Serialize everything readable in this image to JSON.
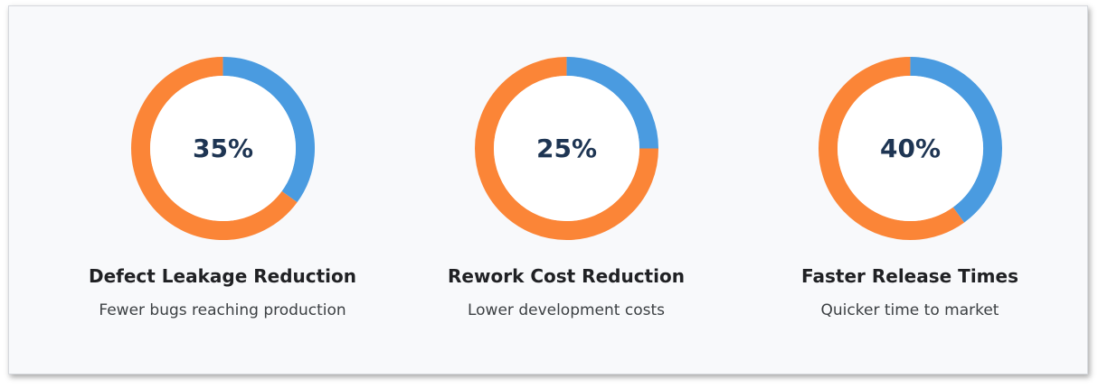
{
  "colors": {
    "primary": "#4a9be0",
    "remainder": "#fb8537",
    "text_value": "#1e3553"
  },
  "chart_data": {
    "type": "pie",
    "items": [
      {
        "value": 35,
        "label": "35%",
        "title": "Defect Leakage Reduction",
        "description": "Fewer bugs reaching production"
      },
      {
        "value": 25,
        "label": "25%",
        "title": "Rework Cost Reduction",
        "description": "Lower development costs"
      },
      {
        "value": 40,
        "label": "40%",
        "title": "Faster Release Times",
        "description": "Quicker time to market"
      }
    ]
  }
}
